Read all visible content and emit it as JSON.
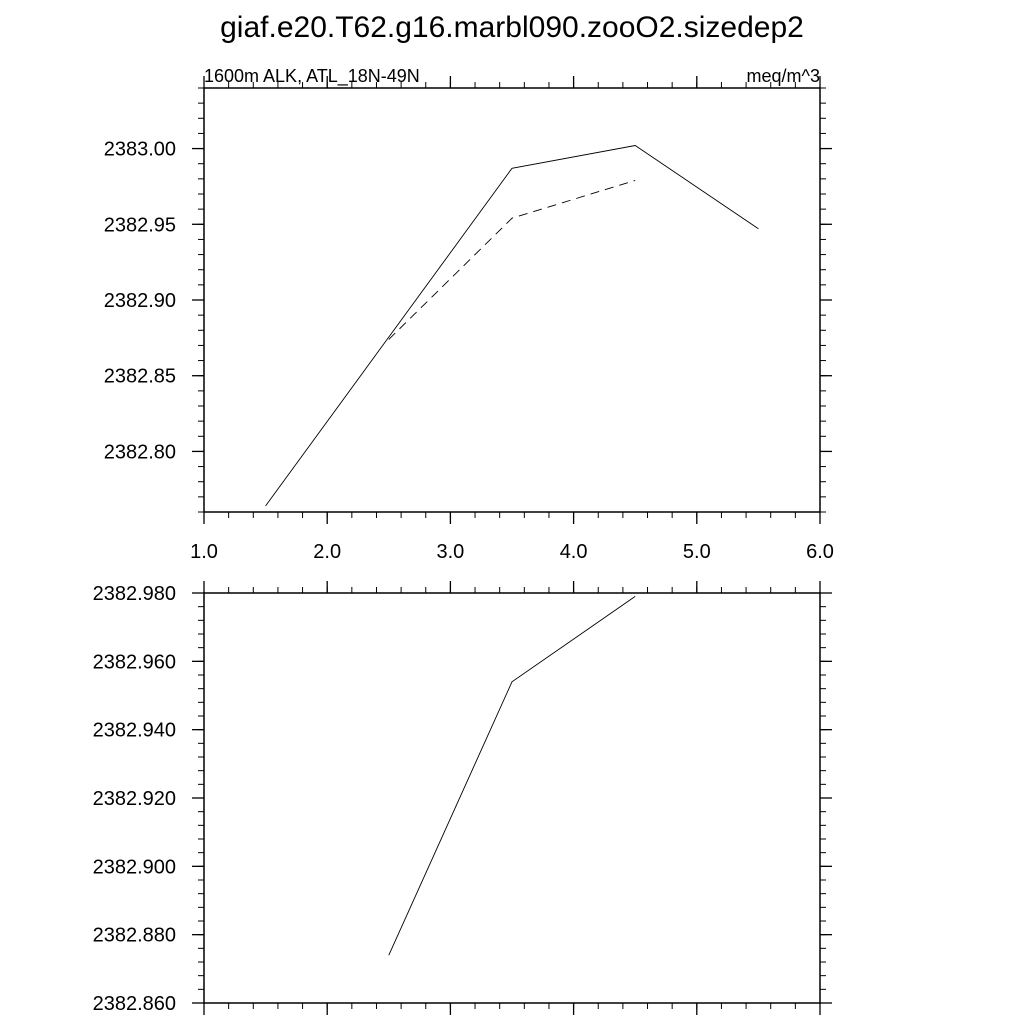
{
  "title": "giaf.e20.T62.g16.marbl090.zooO2.sizedep2",
  "chart_data": [
    {
      "type": "line",
      "title": "",
      "subtitle_left": "1600m ALK, ATL_18N-49N",
      "subtitle_right": "meq/m^3",
      "xlim": [
        1.0,
        6.0
      ],
      "ylim": [
        2382.76,
        2383.04
      ],
      "x_ticks": [
        1.0,
        2.0,
        3.0,
        4.0,
        5.0,
        6.0
      ],
      "x_tick_labels": [
        "1.0",
        "2.0",
        "3.0",
        "4.0",
        "5.0",
        "6.0"
      ],
      "y_ticks": [
        2382.8,
        2382.85,
        2382.9,
        2382.95,
        2383.0
      ],
      "y_tick_labels": [
        "2382.80",
        "2382.85",
        "2382.90",
        "2382.95",
        "2383.00"
      ],
      "series": [
        {
          "style": "solid",
          "x": [
            1.5,
            3.5,
            4.5,
            5.5
          ],
          "y": [
            2382.764,
            2382.987,
            2383.002,
            2382.947
          ]
        },
        {
          "style": "dashed",
          "x": [
            2.5,
            3.5,
            4.5
          ],
          "y": [
            2382.874,
            2382.954,
            2382.979
          ]
        }
      ]
    },
    {
      "type": "line",
      "title": "",
      "xlim": [
        1.0,
        6.0
      ],
      "ylim": [
        2382.86,
        2382.98
      ],
      "x_ticks": [
        1.0,
        2.0,
        3.0,
        4.0,
        5.0,
        6.0
      ],
      "y_ticks": [
        2382.86,
        2382.88,
        2382.9,
        2382.92,
        2382.94,
        2382.96,
        2382.98
      ],
      "y_tick_labels": [
        "2382.860",
        "2382.880",
        "2382.900",
        "2382.920",
        "2382.940",
        "2382.960",
        "2382.980"
      ],
      "series": [
        {
          "style": "solid",
          "x": [
            2.5,
            3.5,
            4.5
          ],
          "y": [
            2382.874,
            2382.954,
            2382.979
          ]
        }
      ]
    }
  ]
}
